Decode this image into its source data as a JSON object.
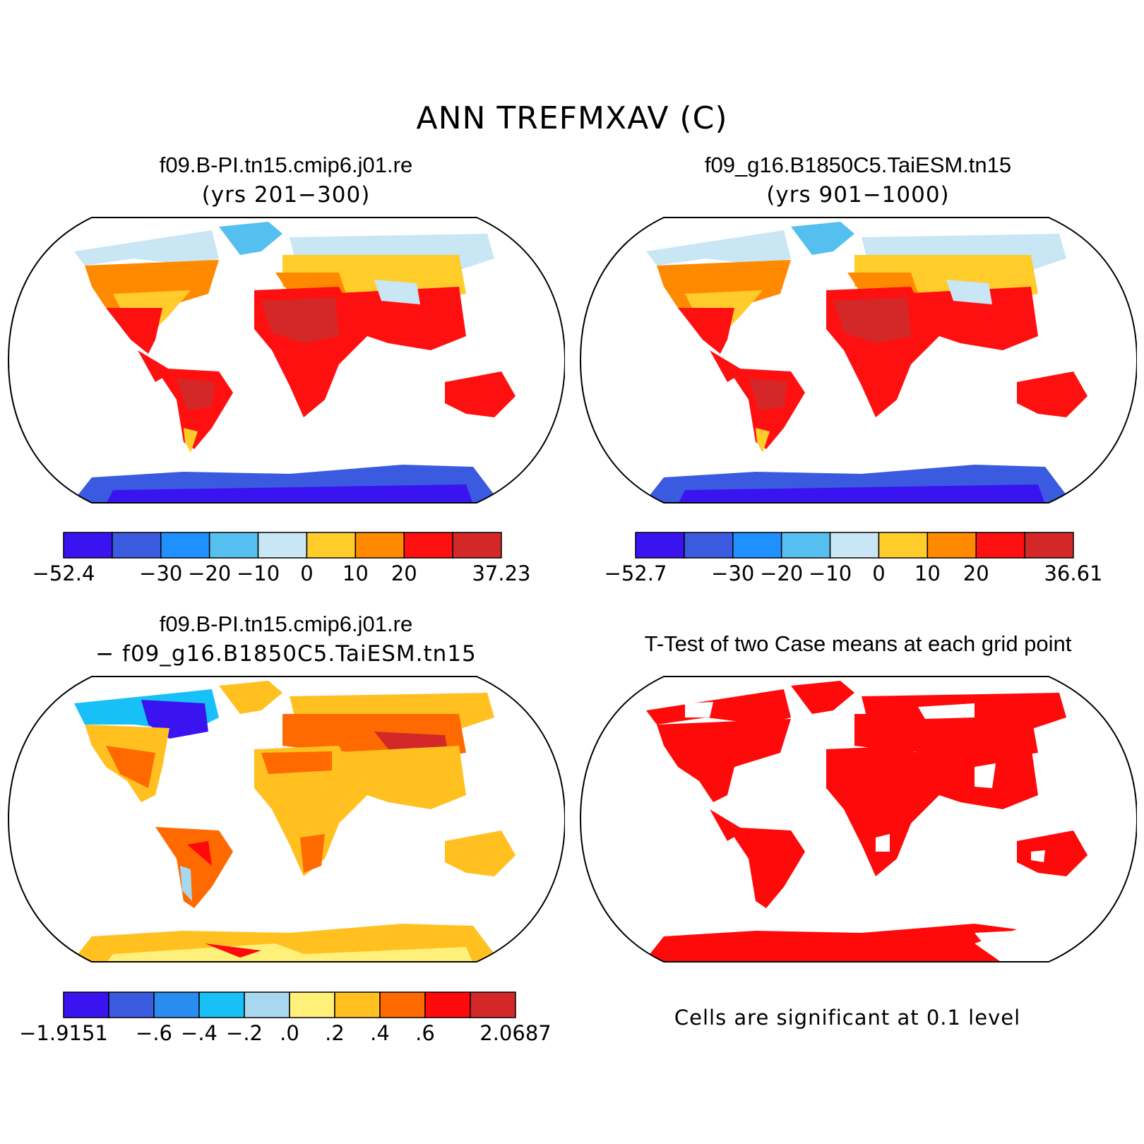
{
  "title": "ANN TREFMXAV (C)",
  "panels": [
    {
      "title": "f09.B-PI.tn15.cmip6.j01.re",
      "subtitle": "(yrs 201−300)",
      "colorbar": {
        "colors": [
          "#3a14f0",
          "#3a5ae0",
          "#1e90ff",
          "#55bff0",
          "#c8e6f4",
          "#ffcc2a",
          "#ff8a00",
          "#ff1010",
          "#d42828"
        ],
        "labels": [
          "−52.4",
          "−30",
          "−20",
          "−10",
          "0",
          "10",
          "20",
          "37.23"
        ],
        "label_boundaries": [
          0,
          2,
          3,
          4,
          5,
          6,
          7,
          9
        ]
      }
    },
    {
      "title": "f09_g16.B1850C5.TaiESM.tn15",
      "subtitle": "(yrs 901−1000)",
      "colorbar": {
        "colors": [
          "#3a14f0",
          "#3a5ae0",
          "#1e90ff",
          "#55bff0",
          "#c8e6f4",
          "#ffcc2a",
          "#ff8a00",
          "#ff1010",
          "#d42828"
        ],
        "labels": [
          "−52.7",
          "−30",
          "−20",
          "−10",
          "0",
          "10",
          "20",
          "36.61"
        ],
        "label_boundaries": [
          0,
          2,
          3,
          4,
          5,
          6,
          7,
          9
        ]
      }
    },
    {
      "title": "f09.B-PI.tn15.cmip6.j01.re",
      "subtitle": "−  f09_g16.B1850C5.TaiESM.tn15",
      "colorbar": {
        "colors": [
          "#3a14f0",
          "#3a5ae0",
          "#2a8cf0",
          "#18c0f8",
          "#a8d8f0",
          "#fff07a",
          "#ffc020",
          "#ff6a00",
          "#ff0a0a",
          "#d42828"
        ],
        "labels": [
          "−1.9151",
          "−.6",
          "−.4",
          "−.2",
          ".0",
          ".2",
          ".4",
          ".6",
          "2.0687"
        ],
        "label_boundaries": [
          0,
          2,
          3,
          4,
          5,
          6,
          7,
          8,
          10
        ]
      }
    },
    {
      "title": "T-Test of two Case means at each grid point",
      "note": "Cells are significant at 0.1 level"
    }
  ]
}
